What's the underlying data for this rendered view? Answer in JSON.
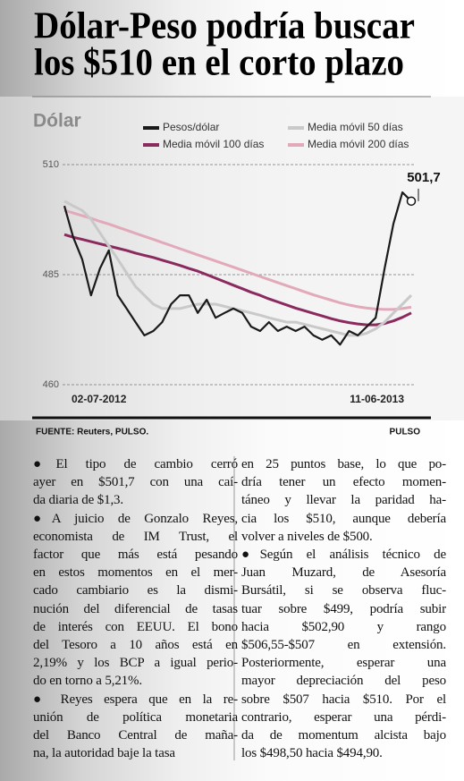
{
  "header": {
    "title": [
      "Dólar-Peso podría buscar",
      "los $510 en el corto plazo"
    ]
  },
  "chart_data": {
    "type": "line",
    "title": "Dólar",
    "categories": [
      "02-07-2012",
      null,
      null,
      null,
      null,
      null,
      null,
      null,
      null,
      null,
      null,
      null,
      null,
      null,
      null,
      null,
      null,
      null,
      null,
      null,
      null,
      null,
      null,
      null,
      null,
      null,
      null,
      null,
      null,
      null,
      null,
      null,
      null,
      null,
      null,
      null,
      null,
      null,
      null,
      "11-06-2013"
    ],
    "series": [
      {
        "name": "Pesos/dólar",
        "color": "#1a1a1a",
        "values": [
          500.6,
          493.5,
          488.5,
          480.3,
          486.4,
          490.5,
          480.3,
          477.3,
          474.2,
          471.2,
          472.2,
          474.2,
          478.3,
          480.3,
          480.3,
          476.3,
          479.3,
          475.2,
          476.3,
          477.3,
          476.3,
          473.2,
          472.2,
          474.2,
          472.2,
          473.2,
          472.2,
          473.2,
          471.2,
          470.2,
          471.2,
          469.1,
          472.2,
          471.2,
          473.2,
          475.2,
          486.4,
          496.6,
          503.7,
          501.7
        ],
        "value_labels": [
          null,
          null,
          null,
          null,
          null,
          null,
          null,
          null,
          null,
          null,
          null,
          null,
          null,
          null,
          null,
          null,
          null,
          null,
          null,
          null,
          null,
          null,
          null,
          null,
          null,
          null,
          null,
          null,
          null,
          null,
          null,
          null,
          null,
          null,
          null,
          null,
          null,
          null,
          null,
          "501,7"
        ]
      },
      {
        "name": "Media móvil 50 días",
        "color": "#c9c9c9",
        "values": [
          501.7,
          500.6,
          499.6,
          497.6,
          494.5,
          491.5,
          488.5,
          485.4,
          482.3,
          480.3,
          478.3,
          477.3,
          477.3,
          477.3,
          477.8,
          478.3,
          478.3,
          478.3,
          477.8,
          477.3,
          476.8,
          476.3,
          475.8,
          475.2,
          474.7,
          474.2,
          474.2,
          473.7,
          473.2,
          472.7,
          472.2,
          471.7,
          471.2,
          471.2,
          471.7,
          472.7,
          474.2,
          476.3,
          478.3,
          480.3
        ]
      },
      {
        "name": "Media móvil 100 días",
        "color": "#8b2a5e",
        "values": [
          494.1,
          493.5,
          493.0,
          492.5,
          492.0,
          491.5,
          491.0,
          490.5,
          489.9,
          489.4,
          488.9,
          488.3,
          487.7,
          487.1,
          486.4,
          485.8,
          485.0,
          484.2,
          483.4,
          482.6,
          481.8,
          481.0,
          480.3,
          479.5,
          478.8,
          478.1,
          477.4,
          476.8,
          476.2,
          475.6,
          475.0,
          474.5,
          474.1,
          473.8,
          473.6,
          473.6,
          473.9,
          474.5,
          475.3,
          476.3
        ]
      },
      {
        "name": "Media móvil 200 días",
        "color": "#e2a9b9",
        "values": [
          499.6,
          499.0,
          498.4,
          497.8,
          497.1,
          496.5,
          495.8,
          495.1,
          494.4,
          493.7,
          493.0,
          492.3,
          491.6,
          490.9,
          490.2,
          489.5,
          488.8,
          488.1,
          487.4,
          486.7,
          486.0,
          485.3,
          484.6,
          483.9,
          483.2,
          482.5,
          481.8,
          481.1,
          480.4,
          479.8,
          479.2,
          478.6,
          478.1,
          477.7,
          477.4,
          477.2,
          477.1,
          477.1,
          477.3,
          477.6
        ]
      }
    ],
    "ylim": [
      460,
      510
    ],
    "yticks": [
      460,
      485,
      510
    ],
    "grid": true
  },
  "footer": {
    "source": "FUENTE: Reuters, PULSO.",
    "brand": "PULSO"
  },
  "body": {
    "columns": [
      [
        [
          "●El tipo de cambio cerró",
          "ayer en $501,7 con una caí-",
          "da diaria de $1,3."
        ],
        [
          "●A juicio de Gonzalo Reyes,",
          "economista de IM Trust, el",
          "factor que más está pesando",
          "en estos momentos en el mer-",
          "cado cambiario es la dismi-",
          "nución del diferencial de tasas",
          "de interés con EEUU. El bono",
          "del Tesoro a 10 años está en",
          "2,19% y los BCP a igual perio-",
          "do en torno a 5,21%."
        ],
        [
          "● Reyes espera que en la re-",
          "unión de política monetaria",
          "del Banco Central de maña-",
          "na, la autoridad baje la tasa"
        ]
      ],
      [
        [
          "en 25 puntos base, lo que po-",
          "dría tener un efecto momen-",
          "táneo y llevar la paridad ha-",
          "cia los $510, aunque debería",
          "volver a niveles de $500."
        ],
        [
          "●Según el análisis técnico de",
          "Juan Muzard, de Asesoría",
          "Bursátil, si se observa fluc-",
          "tuar sobre $499, podría subir",
          "hacia $502,90 y rango",
          "$506,55-$507 en extensión.",
          "Posteriormente, esperar una",
          "mayor depreciación del peso",
          "sobre $507 hacia $510. Por el",
          "contrario, esperar una pérdi-",
          "da de momentum alcista bajo",
          "los $498,50 hacia $494,90."
        ]
      ]
    ]
  }
}
